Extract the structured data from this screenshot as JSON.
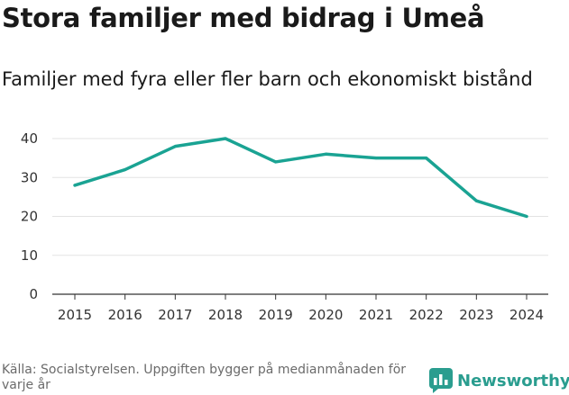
{
  "header": {
    "title": "Stora familjer med bidrag i Umeå",
    "subtitle": "Familjer med fyra eller fler barn och ekonomiskt bistånd"
  },
  "footer": {
    "source": "Källa: Socialstyrelsen. Uppgiften bygger på medianmånaden för varje år",
    "brand": "Newsworthy"
  },
  "colors": {
    "line": "#1aa393",
    "grid": "#e3e3e3",
    "axis": "#333333",
    "brand": "#2a9d8f"
  },
  "chart_data": {
    "type": "line",
    "title": "Stora familjer med bidrag i Umeå",
    "subtitle": "Familjer med fyra eller fler barn och ekonomiskt bistånd",
    "xlabel": "",
    "ylabel": "",
    "x": [
      "2015",
      "2016",
      "2017",
      "2018",
      "2019",
      "2020",
      "2021",
      "2022",
      "2023",
      "2024"
    ],
    "series": [
      {
        "name": "Familjer med fyra eller fler barn och ekonomiskt bistånd",
        "values": [
          28,
          32,
          38,
          40,
          34,
          36,
          35,
          35,
          24,
          20
        ]
      }
    ],
    "yticks": [
      0,
      10,
      20,
      30,
      40
    ],
    "ylim": [
      0,
      40
    ],
    "grid": true,
    "legend": "none"
  }
}
